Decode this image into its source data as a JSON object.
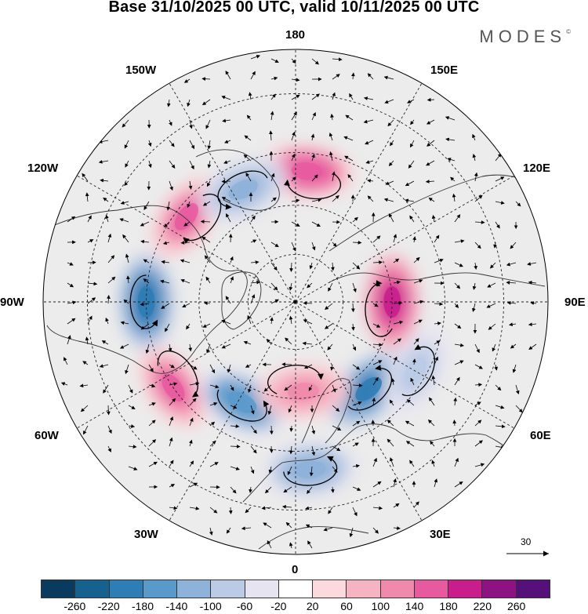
{
  "title": "Base 31/10/2025 00 UTC, valid 10/11/2025 00 UTC",
  "brand": {
    "name": "MODES",
    "mark": "©"
  },
  "longitude_labels": {
    "lon_180": "180",
    "lon_150e": "150E",
    "lon_120e": "120E",
    "lon_90e": "90E",
    "lon_60e": "60E",
    "lon_30e": "30E",
    "lon_0": "0",
    "lon_30w": "30W",
    "lon_60w": "60W",
    "lon_90w": "90W",
    "lon_120w": "120W",
    "lon_150w": "150W"
  },
  "vector_scale_label": "30",
  "colorbar": {
    "colors": [
      "#0a3a5e",
      "#17618f",
      "#2e7db5",
      "#5a9acb",
      "#8eb2d9",
      "#bccbe5",
      "#e6e4f1",
      "#ffffff",
      "#fbd9dc",
      "#f6b4c2",
      "#f08aac",
      "#e75aa0",
      "#c91d8c",
      "#8d1282",
      "#55107a"
    ],
    "ticks": [
      "-260",
      "-220",
      "-180",
      "-140",
      "-100",
      "-60",
      "-20",
      "20",
      "60",
      "100",
      "140",
      "180",
      "220",
      "260"
    ]
  },
  "anomalies": [
    {
      "lon": 175,
      "lat": 50,
      "value": 170,
      "kind": "positive"
    },
    {
      "lon": -90,
      "lat": 45,
      "value": -220,
      "kind": "negative"
    },
    {
      "lon": -128,
      "lat": 48,
      "value": 150,
      "kind": "positive"
    },
    {
      "lon": -55,
      "lat": 45,
      "value": 160,
      "kind": "positive"
    },
    {
      "lon": -28,
      "lat": 55,
      "value": -170,
      "kind": "negative"
    },
    {
      "lon": 90,
      "lat": 60,
      "value": 180,
      "kind": "positive"
    },
    {
      "lon": 40,
      "lat": 55,
      "value": -190,
      "kind": "negative"
    },
    {
      "lon": -155,
      "lat": 52,
      "value": -110,
      "kind": "negative"
    },
    {
      "lon": 5,
      "lat": 62,
      "value": 110,
      "kind": "positive"
    },
    {
      "lon": 5,
      "lat": 40,
      "value": -140,
      "kind": "negative"
    },
    {
      "lon": 60,
      "lat": 48,
      "value": -90,
      "kind": "negative"
    }
  ]
}
